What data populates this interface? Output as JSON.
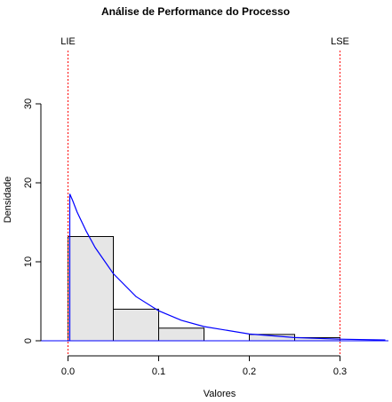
{
  "chart_data": {
    "type": "histogram",
    "title": "Análise de Performance do Processo",
    "xlabel": "Valores",
    "ylabel": "Densidade",
    "xlim": [
      -0.03,
      0.35
    ],
    "ylim": [
      0,
      30
    ],
    "x_ticks": [
      0.0,
      0.1,
      0.2,
      0.3
    ],
    "x_tick_labels": [
      "0.0",
      "0.1",
      "0.2",
      "0.3"
    ],
    "y_ticks": [
      0,
      10,
      20,
      30
    ],
    "y_tick_labels": [
      "0",
      "10",
      "20",
      "30"
    ],
    "bins": [
      {
        "x0": 0.0,
        "x1": 0.05,
        "density": 13.2
      },
      {
        "x0": 0.05,
        "x1": 0.1,
        "density": 4.0
      },
      {
        "x0": 0.1,
        "x1": 0.15,
        "density": 1.6
      },
      {
        "x0": 0.15,
        "x1": 0.2,
        "density": 0.0
      },
      {
        "x0": 0.2,
        "x1": 0.25,
        "density": 0.8
      },
      {
        "x0": 0.25,
        "x1": 0.3,
        "density": 0.4
      }
    ],
    "density_curve": {
      "x": [
        0.002,
        0.005,
        0.01,
        0.02,
        0.03,
        0.05,
        0.075,
        0.1,
        0.125,
        0.15,
        0.2,
        0.25,
        0.3,
        0.35
      ],
      "y": [
        18.6,
        17.8,
        16.3,
        13.9,
        11.8,
        8.5,
        5.6,
        3.8,
        2.6,
        1.8,
        0.85,
        0.4,
        0.2,
        0.1
      ]
    },
    "spec_limits": [
      {
        "label": "LIE",
        "x": 0.0
      },
      {
        "label": "LSE",
        "x": 0.3
      }
    ],
    "colors": {
      "bar_fill": "#e6e6e6",
      "bar_stroke": "#000000",
      "curve": "#0000ff",
      "limit_line": "#ff0000"
    }
  }
}
